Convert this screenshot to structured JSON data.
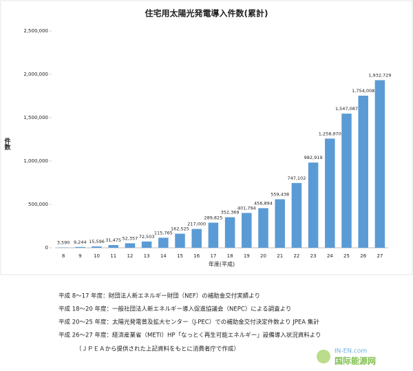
{
  "chart_data": {
    "type": "bar",
    "title": "住宅用太陽光発電導入件数(累計)",
    "y_label": "件数",
    "x_label": "年度(平成)",
    "categories": [
      "8",
      "9",
      "10",
      "11",
      "12",
      "13",
      "14",
      "15",
      "16",
      "17",
      "18",
      "19",
      "20",
      "21",
      "22",
      "23",
      "24",
      "25",
      "26",
      "27"
    ],
    "values": [
      3590,
      9244,
      15596,
      31475,
      52357,
      72503,
      115765,
      162525,
      217000,
      289825,
      352369,
      401794,
      456894,
      559438,
      747102,
      982919,
      1258970,
      1547087,
      1754008,
      1932729
    ],
    "value_labels": [
      "3,590",
      "9,244",
      "15,596",
      "31,475",
      "52,357",
      "72,503",
      "115,765",
      "162,525",
      "217,000",
      "289,825",
      "352,369",
      "401,794",
      "456,894",
      "559,438",
      "747,102",
      "982,919",
      "1,258,970",
      "1,547,087",
      "1,754,008",
      "1,932,729"
    ],
    "color": "#5b9bd5",
    "ylim": [
      0,
      2500000
    ],
    "yticks": [
      0,
      {
        "value": 500000,
        "label": "500,000"
      },
      {
        "value": 1000000,
        "label": "1,000,000"
      },
      {
        "value": 1500000,
        "label": "1,500,000"
      },
      {
        "value": 2000000,
        "label": "2,000,000"
      },
      {
        "value": 2500000,
        "label": "2,500,000"
      }
    ],
    "grid": false
  },
  "notes": [
    "平成 8～17 年度：財団法人新エネルギー財団（NEF）の補助金交付実績より",
    "平成 18～20 年度：一般社団法人新エネルギー導入促進協議会（NEPC）による調査より",
    "平成 20～25 年度：太陽光発電普及拡大センター（J-PEC）での補助金交付決定件数より JPEA 集計",
    "平成 26～27 年度：経済産業省（METI）HP「なっとく再生可能エネルギー」設備導入状況資料より",
    "（ＪＰＥＡから提供された上記資料をもとに消費者庁で作成）"
  ],
  "watermark": {
    "site": "IN-EN.com",
    "name": "国际能源网"
  }
}
